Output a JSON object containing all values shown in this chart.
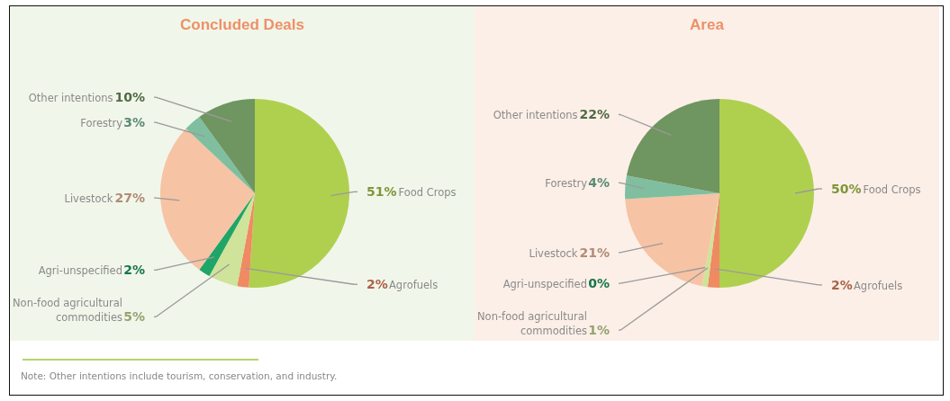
{
  "chart_data": [
    {
      "type": "pie",
      "title": "Concluded Deals",
      "categories": [
        "Food Crops",
        "Agrofuels",
        "Non-food agricultural commodities",
        "Agri-unspecified",
        "Livestock",
        "Forestry",
        "Other intentions"
      ],
      "values": [
        51,
        2,
        5,
        2,
        27,
        3,
        10
      ],
      "value_labels": [
        "51%",
        "2%",
        "5%",
        "2%",
        "27%",
        "3%",
        "10%"
      ],
      "colors": [
        "#afd04f",
        "#f08a62",
        "#cfe39a",
        "#1fa567",
        "#f6c3a4",
        "#7fbfa0",
        "#6f9560"
      ],
      "annotations": [
        "Note: Other intentions include tourism, conservation, and industry."
      ]
    },
    {
      "type": "pie",
      "title": "Area",
      "categories": [
        "Food Crops",
        "Agrofuels",
        "Non-food agricultural commodities",
        "Agri-unspecified",
        "Livestock",
        "Forestry",
        "Other intentions"
      ],
      "values": [
        50,
        2,
        1,
        0,
        21,
        4,
        22
      ],
      "value_labels": [
        "50%",
        "2%",
        "1%",
        "0%",
        "21%",
        "4%",
        "22%"
      ],
      "colors": [
        "#afd04f",
        "#f08a62",
        "#cfe39a",
        "#1fa567",
        "#f6c3a4",
        "#7fbfa0",
        "#6f9560"
      ]
    }
  ]
}
